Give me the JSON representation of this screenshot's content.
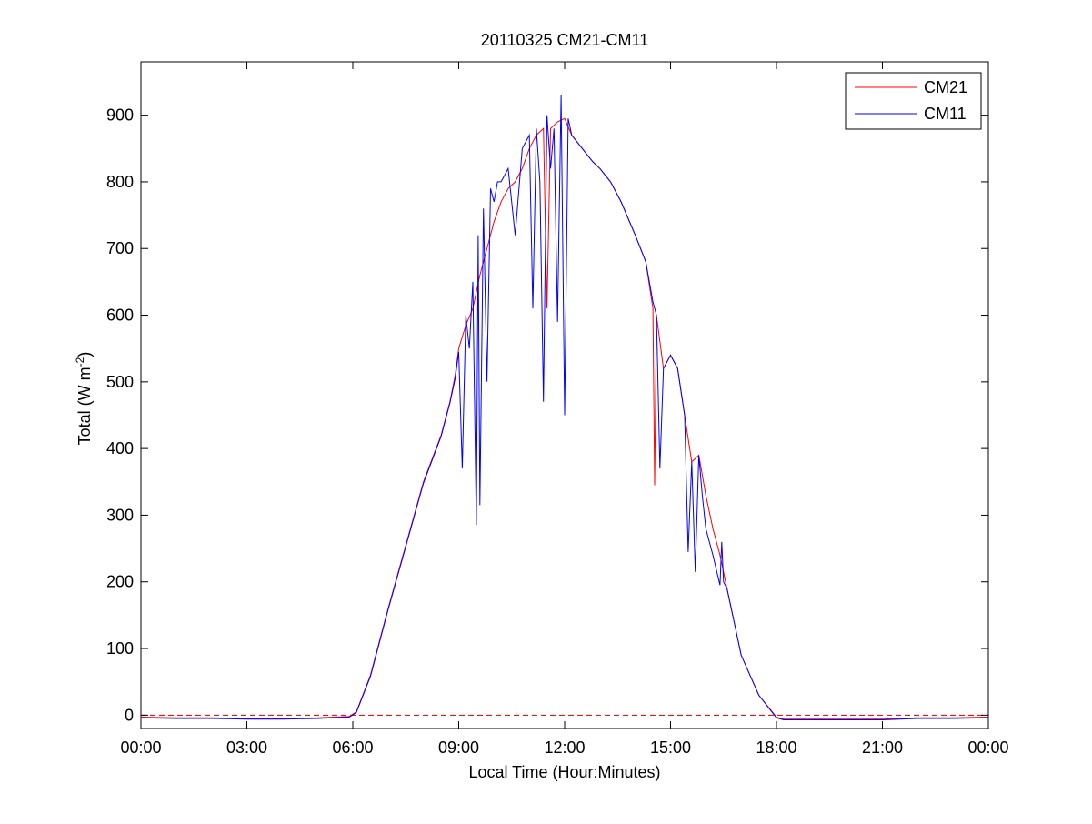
{
  "chart_data": {
    "type": "line",
    "title": "20110325 CM21-CM11",
    "xlabel": "Local Time (Hour:Minutes)",
    "ylabel_main": "Total (W m",
    "ylabel_sup": "-2",
    "ylabel_close": ")",
    "xlim": [
      0,
      24
    ],
    "ylim": [
      -20,
      980
    ],
    "x_unit": "hours",
    "x_ticks": [
      0,
      3,
      6,
      9,
      12,
      15,
      18,
      21,
      24
    ],
    "x_tick_labels": [
      "00:00",
      "03:00",
      "06:00",
      "09:00",
      "12:00",
      "15:00",
      "18:00",
      "21:00",
      "00:00"
    ],
    "y_ticks": [
      0,
      100,
      200,
      300,
      400,
      500,
      600,
      700,
      800,
      900
    ],
    "y_tick_labels": [
      "0",
      "100",
      "200",
      "300",
      "400",
      "500",
      "600",
      "700",
      "800",
      "900"
    ],
    "grid": false,
    "legend_position": "top-right",
    "reference_line": {
      "y": 0,
      "style": "dashed",
      "color": "#cc0000"
    },
    "series": [
      {
        "name": "CM21",
        "color": "#ff0000",
        "x": [
          0,
          1,
          2,
          3,
          4,
          5,
          5.9,
          6.1,
          6.5,
          7,
          7.5,
          8,
          8.5,
          8.75,
          8.9,
          9,
          9.2,
          9.4,
          9.6,
          9.8,
          10,
          10.2,
          10.4,
          10.6,
          10.8,
          11,
          11.2,
          11.4,
          11.5,
          11.6,
          11.8,
          12,
          12.2,
          12.5,
          12.8,
          13,
          13.3,
          13.6,
          14,
          14.3,
          14.5,
          14.55,
          14.6,
          14.8,
          15,
          15.2,
          15.4,
          15.6,
          15.8,
          16,
          16.2,
          16.4,
          16.6,
          16.8,
          17,
          17.5,
          18,
          18.2,
          18.5,
          19,
          20,
          21,
          22,
          23,
          24
        ],
        "y": [
          -3,
          -4,
          -4,
          -5,
          -5,
          -4,
          -2,
          5,
          60,
          160,
          255,
          350,
          420,
          470,
          510,
          550,
          585,
          610,
          660,
          700,
          740,
          770,
          790,
          800,
          820,
          850,
          870,
          880,
          610,
          880,
          890,
          895,
          870,
          850,
          830,
          820,
          800,
          770,
          720,
          680,
          610,
          345,
          600,
          520,
          540,
          520,
          450,
          380,
          390,
          330,
          280,
          240,
          190,
          140,
          90,
          30,
          -3,
          -6,
          -6,
          -6,
          -6,
          -6,
          -4,
          -4,
          -3
        ]
      },
      {
        "name": "CM11",
        "color": "#0000ff",
        "x": [
          0,
          1,
          2,
          3,
          4,
          5,
          5.9,
          6.1,
          6.5,
          7,
          7.5,
          8,
          8.5,
          8.75,
          8.9,
          9,
          9.1,
          9.2,
          9.3,
          9.4,
          9.5,
          9.55,
          9.6,
          9.7,
          9.8,
          9.9,
          10,
          10.1,
          10.2,
          10.4,
          10.6,
          10.8,
          11,
          11.1,
          11.2,
          11.3,
          11.4,
          11.5,
          11.6,
          11.7,
          11.8,
          11.9,
          12,
          12.1,
          12.2,
          12.5,
          12.8,
          13,
          13.3,
          13.6,
          14,
          14.3,
          14.5,
          14.6,
          14.7,
          14.8,
          15,
          15.2,
          15.4,
          15.5,
          15.6,
          15.7,
          15.8,
          15.9,
          16,
          16.2,
          16.4,
          16.45,
          16.5,
          16.6,
          16.8,
          17,
          17.5,
          18,
          18.2,
          18.5,
          19,
          20,
          21,
          22,
          23,
          24
        ],
        "y": [
          -4,
          -5,
          -5,
          -6,
          -6,
          -5,
          -3,
          4,
          58,
          158,
          253,
          348,
          418,
          468,
          505,
          545,
          370,
          600,
          550,
          650,
          285,
          720,
          315,
          760,
          500,
          790,
          770,
          800,
          800,
          820,
          720,
          850,
          870,
          610,
          880,
          800,
          470,
          900,
          820,
          880,
          590,
          930,
          450,
          895,
          870,
          850,
          830,
          820,
          800,
          770,
          720,
          680,
          620,
          600,
          370,
          520,
          540,
          520,
          450,
          245,
          380,
          215,
          390,
          330,
          280,
          240,
          195,
          260,
          200,
          190,
          140,
          90,
          30,
          -4,
          -7,
          -7,
          -7,
          -7,
          -7,
          -5,
          -5,
          -4
        ]
      }
    ]
  }
}
